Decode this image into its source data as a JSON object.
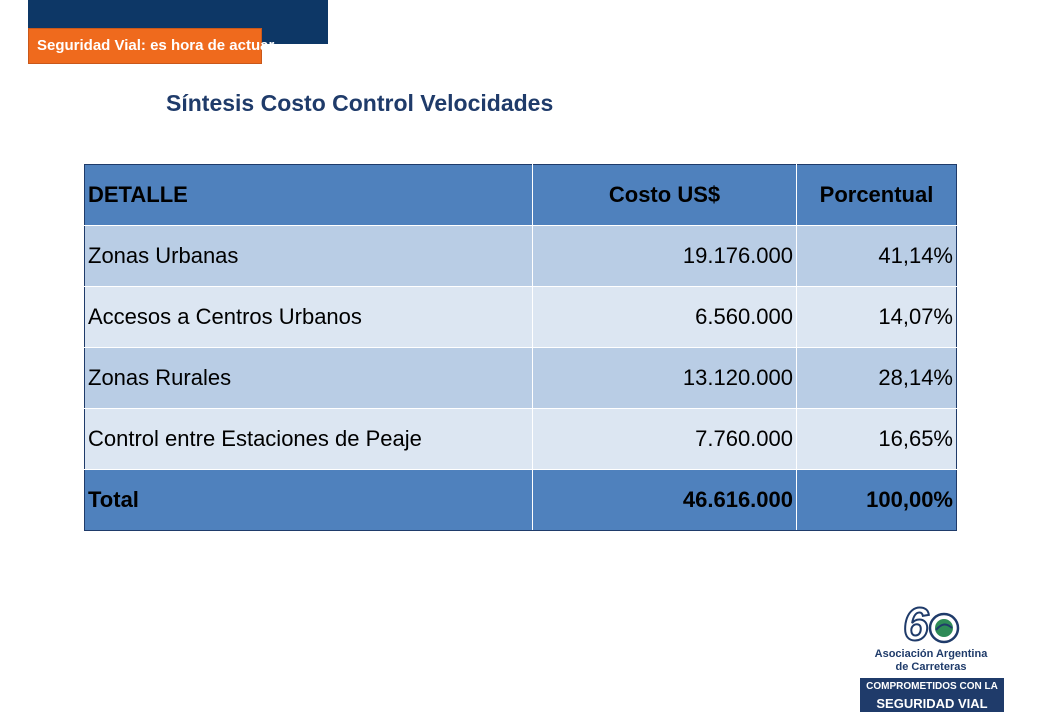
{
  "header": {
    "banner_text": "Seguridad Vial: es hora de actuar"
  },
  "title": "Síntesis Costo Control Velocidades",
  "table": {
    "columns": [
      "DETALLE",
      "Costo US$",
      "Porcentual"
    ],
    "rows": [
      [
        "Zonas Urbanas",
        "19.176.000",
        "41,14%"
      ],
      [
        "Accesos a Centros Urbanos",
        "6.560.000",
        "14,07%"
      ],
      [
        "Zonas Rurales",
        "13.120.000",
        "28,14%"
      ],
      [
        "Control entre Estaciones de Peaje",
        "7.760.000",
        "16,65%"
      ]
    ],
    "total": [
      "Total",
      "46.616.000",
      "100,00%"
    ]
  },
  "logo": {
    "number": "60",
    "org_line_1": "Asociación Argentina",
    "org_line_2": "de Carreteras",
    "tag_line_1": "COMPROMETIDOS CON LA",
    "tag_line_2": "SEGURIDAD VIAL"
  },
  "colors": {
    "header_navy": "#0d3766",
    "banner_orange": "#ef6a1d",
    "title_blue": "#1f3b6a",
    "table_header": "#4f81bd",
    "row_dark": "#b9cde5",
    "row_light": "#dce6f2"
  }
}
